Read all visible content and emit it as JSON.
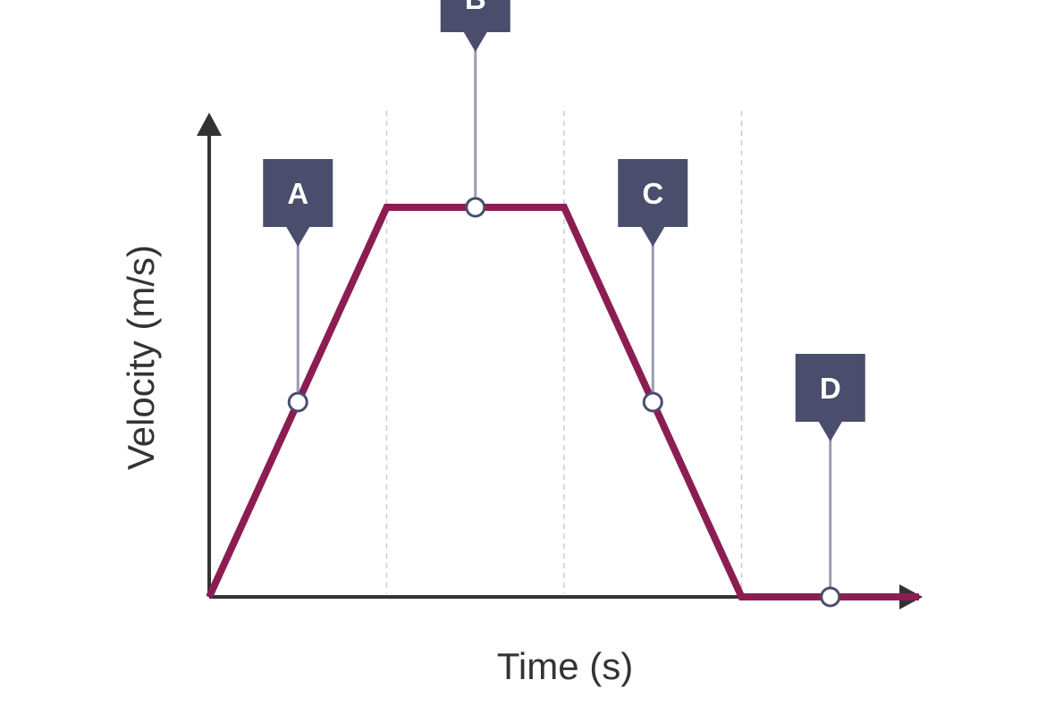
{
  "chart_data": {
    "type": "line",
    "title": "",
    "xlabel": "Time (s)",
    "ylabel": "Velocity (m/s)",
    "x_ticks_labeled": false,
    "y_ticks_labeled": false,
    "grid": "vertical dashed at phase boundaries",
    "xlim": [
      0,
      4
    ],
    "ylim": [
      0,
      1
    ],
    "series": [
      {
        "x": [
          0,
          1,
          2,
          3,
          4
        ],
        "y": [
          0,
          1,
          1,
          0,
          0
        ],
        "color": "#8c1d52"
      }
    ],
    "phase_boundaries": [
      1,
      2,
      3
    ],
    "annotations": [
      {
        "label": "A",
        "x": 0.5,
        "y": 0.5
      },
      {
        "label": "B",
        "x": 1.5,
        "y": 1
      },
      {
        "label": "C",
        "x": 2.5,
        "y": 0.5
      },
      {
        "label": "D",
        "x": 3.5,
        "y": 0
      }
    ]
  },
  "colors": {
    "line": "#8c1d52",
    "axis": "#333333",
    "callout_box": "#4a4d6b",
    "callout_stem": "#9a9cb2",
    "grid": "#c8cbe0",
    "marker_fill": "#ffffff"
  }
}
